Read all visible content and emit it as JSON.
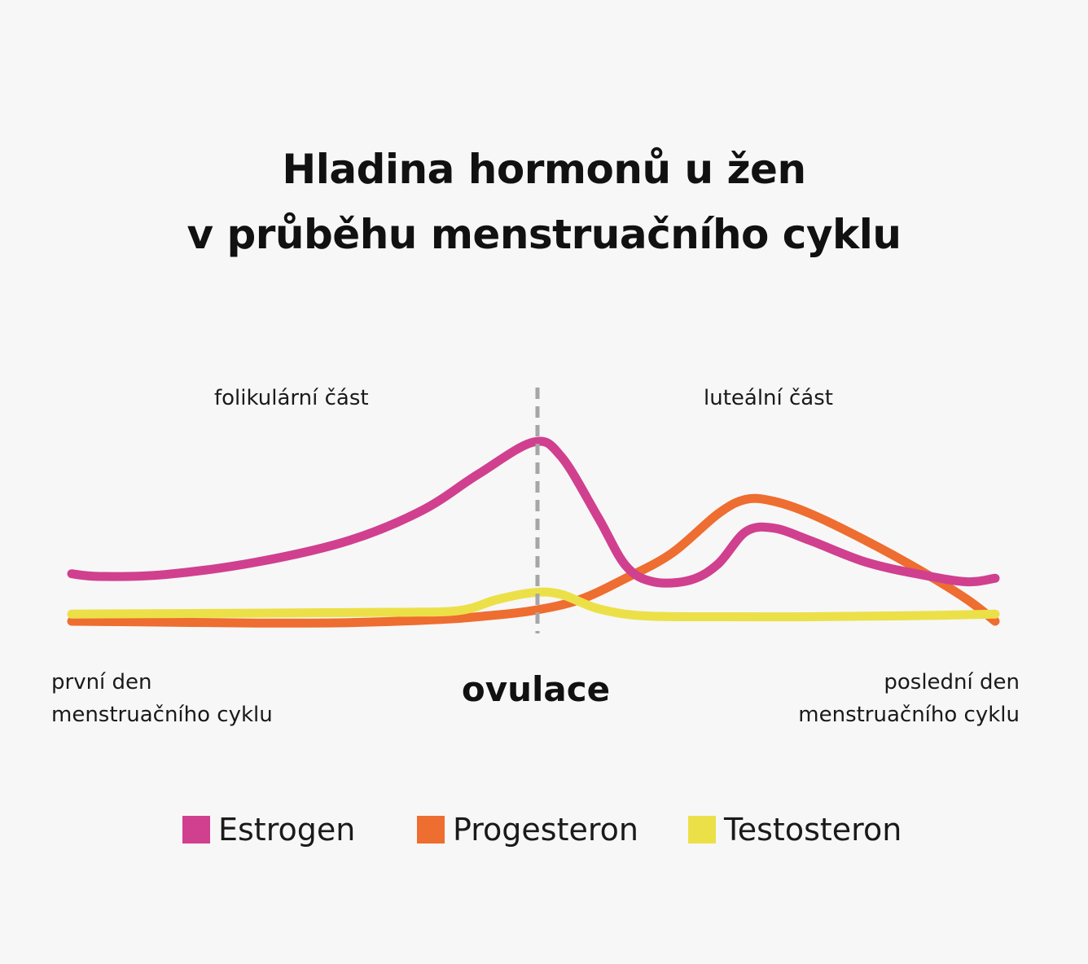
{
  "title": {
    "line1": "Hladina hormonů u žen",
    "line2": "v průběhu menstruačního cyklu"
  },
  "labels": {
    "follicular": "folikulární část",
    "luteal": "luteální část",
    "first_day_line1": "první den",
    "first_day_line2": "menstruačního cyklu",
    "last_day_line1": "poslední den",
    "last_day_line2": "menstruačního cyklu",
    "ovulation": "ovulace"
  },
  "chart_data": {
    "type": "line",
    "axes_shown": false,
    "grid": false,
    "legend_position": "bottom",
    "marker": {
      "name": "ovulace",
      "x": 0.5,
      "style": "dashed",
      "color": "#a6a6a6"
    },
    "series": [
      {
        "name": "Estrogen",
        "color": "#d0408f",
        "x": [
          0,
          0.03,
          0.1,
          0.2,
          0.3,
          0.38,
          0.44,
          0.5,
          0.53,
          0.57,
          0.6,
          0.63,
          0.67,
          0.7,
          0.73,
          0.76,
          0.8,
          0.86,
          0.92,
          0.97,
          1
        ],
        "y": [
          0.265,
          0.25,
          0.26,
          0.33,
          0.45,
          0.62,
          0.82,
          1,
          0.92,
          0.58,
          0.31,
          0.22,
          0.23,
          0.32,
          0.5,
          0.52,
          0.45,
          0.33,
          0.26,
          0.22,
          0.24
        ]
      },
      {
        "name": "Progesteron",
        "color": "#ee6d30",
        "x": [
          0,
          0.1,
          0.2,
          0.3,
          0.4,
          0.45,
          0.5,
          0.55,
          0.6,
          0.65,
          0.7,
          0.73,
          0.76,
          0.8,
          0.86,
          0.92,
          0.97,
          1
        ],
        "y": [
          0,
          -0.005,
          -0.01,
          -0.008,
          0.01,
          0.03,
          0.06,
          0.12,
          0.24,
          0.38,
          0.6,
          0.68,
          0.67,
          0.6,
          0.45,
          0.28,
          0.12,
          0
        ],
        "y_display_min": -0.03
      },
      {
        "name": "Testosteron",
        "color": "#ece048",
        "x": [
          0,
          0.2,
          0.35,
          0.42,
          0.46,
          0.5,
          0.53,
          0.57,
          0.62,
          0.7,
          0.8,
          0.9,
          1
        ],
        "y": [
          0.04,
          0.045,
          0.05,
          0.06,
          0.12,
          0.16,
          0.15,
          0.07,
          0.03,
          0.025,
          0.025,
          0.03,
          0.04
        ]
      }
    ]
  }
}
